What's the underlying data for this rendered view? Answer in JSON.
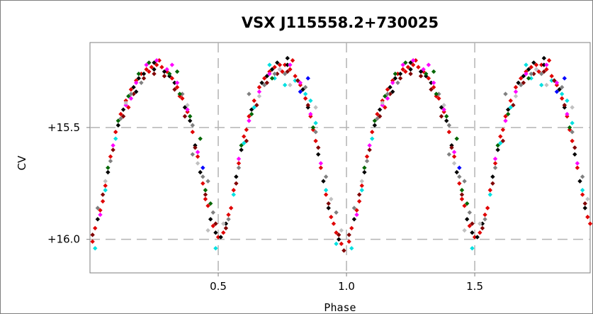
{
  "chart_data": {
    "type": "scatter",
    "title": "VSX J115558.2+730025",
    "xlabel": "Phase",
    "ylabel": "CV",
    "xlim": [
      0.0,
      1.95
    ],
    "ylim": [
      15.12,
      16.15
    ],
    "y_inverted": true,
    "grid": true,
    "x_ticks": [
      {
        "value": 0.5,
        "label": "0.5"
      },
      {
        "value": 1.0,
        "label": "1.0"
      },
      {
        "value": 1.5,
        "label": "1.5"
      }
    ],
    "y_ticks": [
      {
        "value": 15.5,
        "label": "+15.5"
      },
      {
        "value": 16.0,
        "label": "+16.0"
      }
    ],
    "marker_colors": [
      "#e00000",
      "#000000",
      "#ff00ff",
      "#00e0e0",
      "#800000",
      "#808080",
      "#006600",
      "#0000ff",
      "#c0c0c0"
    ],
    "period_repeat": 1.0,
    "series": [
      {
        "color": "#e00000",
        "points": [
          [
            0.01,
            16.01
          ],
          [
            0.02,
            15.95
          ],
          [
            0.04,
            15.87
          ],
          [
            0.06,
            15.76
          ],
          [
            0.08,
            15.63
          ],
          [
            0.1,
            15.52
          ],
          [
            0.12,
            15.44
          ],
          [
            0.14,
            15.38
          ],
          [
            0.16,
            15.33
          ],
          [
            0.18,
            15.29
          ],
          [
            0.2,
            15.26
          ],
          [
            0.22,
            15.24
          ],
          [
            0.24,
            15.23
          ],
          [
            0.26,
            15.22
          ],
          [
            0.28,
            15.23
          ],
          [
            0.3,
            15.25
          ],
          [
            0.32,
            15.28
          ],
          [
            0.34,
            15.32
          ],
          [
            0.36,
            15.37
          ],
          [
            0.38,
            15.43
          ],
          [
            0.4,
            15.52
          ],
          [
            0.42,
            15.63
          ],
          [
            0.44,
            15.75
          ],
          [
            0.46,
            15.85
          ],
          [
            0.48,
            15.94
          ],
          [
            0.5,
            15.99
          ],
          [
            0.52,
            15.97
          ],
          [
            0.54,
            15.89
          ],
          [
            0.56,
            15.78
          ],
          [
            0.58,
            15.66
          ],
          [
            0.6,
            15.54
          ],
          [
            0.62,
            15.45
          ],
          [
            0.64,
            15.38
          ],
          [
            0.66,
            15.32
          ],
          [
            0.68,
            15.28
          ],
          [
            0.7,
            15.25
          ],
          [
            0.72,
            15.23
          ],
          [
            0.74,
            15.22
          ],
          [
            0.76,
            15.22
          ],
          [
            0.78,
            15.24
          ],
          [
            0.8,
            15.27
          ],
          [
            0.82,
            15.31
          ],
          [
            0.84,
            15.37
          ],
          [
            0.86,
            15.45
          ],
          [
            0.88,
            15.56
          ],
          [
            0.9,
            15.68
          ],
          [
            0.92,
            15.8
          ],
          [
            0.94,
            15.9
          ],
          [
            0.96,
            15.97
          ],
          [
            0.98,
            16.02
          ],
          [
            0.23,
            15.25
          ],
          [
            0.27,
            15.2
          ],
          [
            0.75,
            15.25
          ],
          [
            0.79,
            15.2
          ],
          [
            0.15,
            15.41
          ],
          [
            0.35,
            15.36
          ],
          [
            0.61,
            15.51
          ],
          [
            0.87,
            15.51
          ],
          [
            0.05,
            15.83
          ],
          [
            0.45,
            15.82
          ],
          [
            0.55,
            15.86
          ],
          [
            0.95,
            15.93
          ]
        ]
      },
      {
        "color": "#000000",
        "points": [
          [
            0.03,
            15.91
          ],
          [
            0.07,
            15.7
          ],
          [
            0.11,
            15.49
          ],
          [
            0.13,
            15.42
          ],
          [
            0.17,
            15.32
          ],
          [
            0.19,
            15.28
          ],
          [
            0.21,
            15.26
          ],
          [
            0.25,
            15.24
          ],
          [
            0.29,
            15.25
          ],
          [
            0.31,
            15.27
          ],
          [
            0.33,
            15.3
          ],
          [
            0.37,
            15.41
          ],
          [
            0.39,
            15.47
          ],
          [
            0.41,
            15.58
          ],
          [
            0.43,
            15.7
          ],
          [
            0.47,
            15.91
          ],
          [
            0.49,
            15.97
          ],
          [
            0.51,
            15.99
          ],
          [
            0.53,
            15.93
          ],
          [
            0.57,
            15.72
          ],
          [
            0.59,
            15.6
          ],
          [
            0.63,
            15.42
          ],
          [
            0.67,
            15.3
          ],
          [
            0.69,
            15.27
          ],
          [
            0.71,
            15.24
          ],
          [
            0.73,
            15.21
          ],
          [
            0.77,
            15.22
          ],
          [
            0.81,
            15.29
          ],
          [
            0.83,
            15.33
          ],
          [
            0.85,
            15.41
          ],
          [
            0.89,
            15.62
          ],
          [
            0.91,
            15.74
          ],
          [
            0.93,
            15.86
          ],
          [
            0.97,
            16.0
          ],
          [
            0.25,
            15.21
          ],
          [
            0.77,
            15.19
          ],
          [
            0.18,
            15.34
          ]
        ]
      },
      {
        "color": "#ff00ff",
        "points": [
          [
            0.04,
            15.89
          ],
          [
            0.09,
            15.58
          ],
          [
            0.14,
            15.4
          ],
          [
            0.18,
            15.3
          ],
          [
            0.22,
            15.22
          ],
          [
            0.26,
            15.2
          ],
          [
            0.3,
            15.24
          ],
          [
            0.34,
            15.3
          ],
          [
            0.38,
            15.42
          ],
          [
            0.42,
            15.61
          ],
          [
            0.58,
            15.64
          ],
          [
            0.62,
            15.47
          ],
          [
            0.66,
            15.34
          ],
          [
            0.7,
            15.26
          ],
          [
            0.74,
            15.24
          ],
          [
            0.78,
            15.22
          ],
          [
            0.82,
            15.3
          ],
          [
            0.86,
            15.44
          ],
          [
            0.9,
            15.66
          ],
          [
            0.16,
            15.37
          ],
          [
            0.32,
            15.22
          ]
        ]
      },
      {
        "color": "#00e0e0",
        "points": [
          [
            0.02,
            16.04
          ],
          [
            0.06,
            15.78
          ],
          [
            0.1,
            15.55
          ],
          [
            0.56,
            15.8
          ],
          [
            0.6,
            15.57
          ],
          [
            0.64,
            15.41
          ],
          [
            0.72,
            15.28
          ],
          [
            0.76,
            15.31
          ],
          [
            0.8,
            15.29
          ],
          [
            0.84,
            15.35
          ],
          [
            0.88,
            15.48
          ],
          [
            0.92,
            15.78
          ],
          [
            0.96,
            16.02
          ],
          [
            0.49,
            16.04
          ],
          [
            0.7,
            15.22
          ],
          [
            0.86,
            15.38
          ]
        ]
      },
      {
        "color": "#800000",
        "points": [
          [
            0.01,
            15.98
          ],
          [
            0.05,
            15.8
          ],
          [
            0.09,
            15.6
          ],
          [
            0.13,
            15.45
          ],
          [
            0.17,
            15.35
          ],
          [
            0.21,
            15.28
          ],
          [
            0.25,
            15.26
          ],
          [
            0.29,
            15.27
          ],
          [
            0.33,
            15.33
          ],
          [
            0.37,
            15.45
          ],
          [
            0.41,
            15.59
          ],
          [
            0.45,
            15.8
          ],
          [
            0.49,
            15.93
          ],
          [
            0.53,
            15.95
          ],
          [
            0.57,
            15.75
          ],
          [
            0.61,
            15.56
          ],
          [
            0.65,
            15.4
          ],
          [
            0.69,
            15.3
          ],
          [
            0.73,
            15.26
          ],
          [
            0.77,
            15.25
          ],
          [
            0.81,
            15.29
          ],
          [
            0.85,
            15.4
          ],
          [
            0.89,
            15.59
          ],
          [
            0.93,
            15.84
          ],
          [
            0.97,
            15.98
          ],
          [
            0.99,
            16.05
          ]
        ]
      },
      {
        "color": "#808080",
        "points": [
          [
            0.03,
            15.86
          ],
          [
            0.08,
            15.65
          ],
          [
            0.12,
            15.46
          ],
          [
            0.16,
            15.35
          ],
          [
            0.2,
            15.3
          ],
          [
            0.36,
            15.35
          ],
          [
            0.4,
            15.49
          ],
          [
            0.44,
            15.72
          ],
          [
            0.48,
            15.88
          ],
          [
            0.54,
            15.91
          ],
          [
            0.58,
            15.68
          ],
          [
            0.68,
            15.31
          ],
          [
            0.72,
            15.26
          ],
          [
            0.76,
            15.26
          ],
          [
            0.84,
            15.32
          ],
          [
            0.88,
            15.52
          ],
          [
            0.92,
            15.72
          ],
          [
            0.96,
            15.88
          ],
          [
            0.4,
            15.62
          ],
          [
            0.62,
            15.35
          ],
          [
            0.46,
            15.74
          ]
        ]
      },
      {
        "color": "#006600",
        "points": [
          [
            0.07,
            15.68
          ],
          [
            0.11,
            15.47
          ],
          [
            0.15,
            15.36
          ],
          [
            0.19,
            15.26
          ],
          [
            0.23,
            15.21
          ],
          [
            0.31,
            15.26
          ],
          [
            0.35,
            15.35
          ],
          [
            0.39,
            15.45
          ],
          [
            0.43,
            15.55
          ],
          [
            0.47,
            15.84
          ],
          [
            0.59,
            15.58
          ],
          [
            0.63,
            15.44
          ],
          [
            0.71,
            15.28
          ],
          [
            0.87,
            15.5
          ],
          [
            0.45,
            15.78
          ],
          [
            0.34,
            15.25
          ]
        ]
      },
      {
        "color": "#0000ff",
        "points": [
          [
            0.44,
            15.68
          ],
          [
            0.82,
            15.34
          ],
          [
            0.85,
            15.28
          ]
        ]
      },
      {
        "color": "#c0c0c0",
        "points": [
          [
            0.06,
            15.74
          ],
          [
            0.14,
            15.39
          ],
          [
            0.38,
            15.4
          ],
          [
            0.42,
            15.66
          ],
          [
            0.52,
            15.93
          ],
          [
            0.66,
            15.36
          ],
          [
            0.74,
            15.24
          ],
          [
            0.78,
            15.31
          ],
          [
            0.88,
            15.41
          ],
          [
            0.94,
            15.82
          ],
          [
            0.98,
            15.96
          ],
          [
            0.46,
            15.96
          ]
        ]
      }
    ]
  }
}
